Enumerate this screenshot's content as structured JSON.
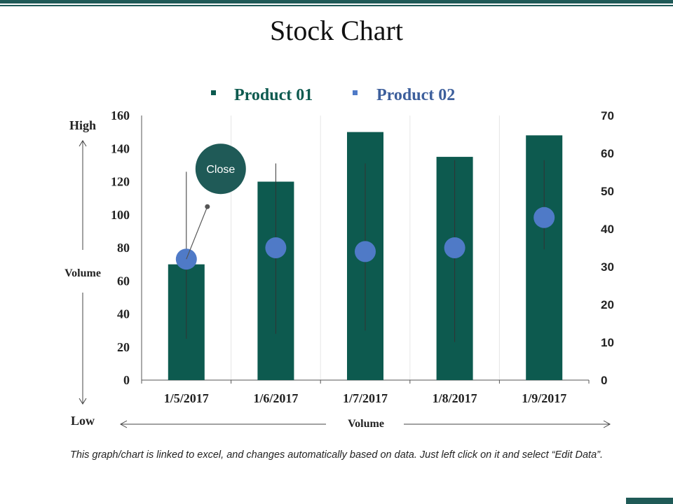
{
  "title": "Stock Chart",
  "footnote": "This graph/chart is linked to excel, and changes automatically based on data. Just left click on it and select “Edit Data”.",
  "colors": {
    "product01": "#0d5a4f",
    "product02": "#4f7ac7",
    "accent": "#1f5a57"
  },
  "chart_data": {
    "type": "bar",
    "title": "Stock Chart",
    "categories": [
      "1/5/2017",
      "1/6/2017",
      "1/7/2017",
      "1/8/2017",
      "1/9/2017"
    ],
    "series": [
      {
        "name": "Product 01",
        "axis": "left",
        "type": "bar",
        "values": [
          70,
          120,
          150,
          135,
          148
        ]
      },
      {
        "name": "Product 02",
        "axis": "right",
        "type": "scatter",
        "values": [
          32,
          35,
          34,
          35,
          43
        ]
      }
    ],
    "hilo": [
      {
        "high": 126,
        "low": 25
      },
      {
        "high": 131,
        "low": 28
      },
      {
        "high": 131,
        "low": 30
      },
      {
        "high": 133,
        "low": 23
      },
      {
        "high": 133,
        "low": 79
      }
    ],
    "yleft": {
      "min": 0,
      "max": 160,
      "ticks": [
        "0",
        "20",
        "40",
        "60",
        "80",
        "100",
        "120",
        "140",
        "160"
      ]
    },
    "yright": {
      "min": 0,
      "max": 70,
      "ticks": [
        "0",
        "10",
        "20",
        "30",
        "40",
        "50",
        "60",
        "70"
      ]
    },
    "annotation": {
      "label": "Close",
      "category_index": 0
    },
    "side_labels": {
      "high": "High",
      "volume_left": "Volume",
      "low": "Low",
      "volume_bottom": "Volume"
    },
    "legend_position": "top"
  }
}
